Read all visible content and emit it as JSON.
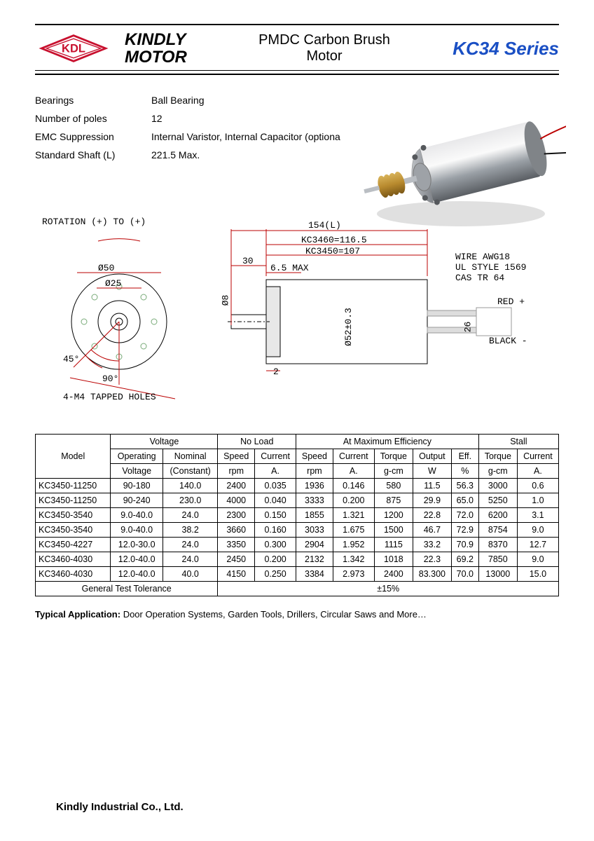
{
  "header": {
    "logo_text": "KDL",
    "brand_line1": "KINDLY",
    "brand_line2": "MOTOR",
    "product_line1": "PMDC Carbon Brush",
    "product_line2": "Motor",
    "series": "KC34 Series",
    "logo_red": "#c8102e"
  },
  "specs": [
    {
      "label": "Bearings",
      "value": "Ball Bearing"
    },
    {
      "label": "Number of poles",
      "value": "12"
    },
    {
      "label": "EMC Suppression",
      "value": "Internal Varistor, Internal Capacitor (optiona"
    },
    {
      "label": "Standard Shaft (L)",
      "value": "221.5 Max."
    }
  ],
  "diagram": {
    "rotation_label": "ROTATION (+) TO (+)",
    "dia50": "Ø50",
    "dia25": "Ø25",
    "ang45": "45°",
    "ang90": "90°",
    "holes": "4-M4 TAPPED HOLES",
    "len154": "154(L)",
    "kc3460": "KC3460=116.5",
    "kc3450": "KC3450=107",
    "d30": "30",
    "d65max": "6.5 MAX",
    "dia8": "Ø8",
    "dia52": "Ø52±0.3",
    "d2": "2",
    "wire1": "WIRE AWG18",
    "wire2": "UL STYLE 1569",
    "wire3": "CAS TR 64",
    "red": "RED +",
    "black": "BLACK -",
    "d26": "26"
  },
  "table": {
    "group_headers": [
      "Model",
      "Voltage",
      "No Load",
      "At Maximum Efficiency",
      "Stall"
    ],
    "sub_headers_row1": [
      "Operating",
      "Nominal",
      "Speed",
      "Current",
      "Speed",
      "Current",
      "Torque",
      "Output",
      "Eff.",
      "Torque",
      "Current"
    ],
    "sub_headers_row2": [
      "Voltage",
      "(Constant)",
      "rpm",
      "A.",
      "rpm",
      "A.",
      "g-cm",
      "W",
      "%",
      "g-cm",
      "A."
    ],
    "rows": [
      [
        "KC3450-11250",
        "90-180",
        "140.0",
        "2400",
        "0.035",
        "1936",
        "0.146",
        "580",
        "11.5",
        "56.3",
        "3000",
        "0.6"
      ],
      [
        "KC3450-11250",
        "90-240",
        "230.0",
        "4000",
        "0.040",
        "3333",
        "0.200",
        "875",
        "29.9",
        "65.0",
        "5250",
        "1.0"
      ],
      [
        "KC3450-3540",
        "9.0-40.0",
        "24.0",
        "2300",
        "0.150",
        "1855",
        "1.321",
        "1200",
        "22.8",
        "72.0",
        "6200",
        "3.1"
      ],
      [
        "KC3450-3540",
        "9.0-40.0",
        "38.2",
        "3660",
        "0.160",
        "3033",
        "1.675",
        "1500",
        "46.7",
        "72.9",
        "8754",
        "9.0"
      ],
      [
        "KC3450-4227",
        "12.0-30.0",
        "24.0",
        "3350",
        "0.300",
        "2904",
        "1.952",
        "1115",
        "33.2",
        "70.9",
        "8370",
        "12.7"
      ],
      [
        "KC3460-4030",
        "12.0-40.0",
        "24.0",
        "2450",
        "0.200",
        "2132",
        "1.342",
        "1018",
        "22.3",
        "69.2",
        "7850",
        "9.0"
      ],
      [
        "KC3460-4030",
        "12.0-40.0",
        "40.0",
        "4150",
        "0.250",
        "3384",
        "2.973",
        "2400",
        "83.300",
        "70.0",
        "13000",
        "15.0"
      ]
    ],
    "tolerance_label": "General Test Tolerance",
    "tolerance_value": "±15%"
  },
  "typical_app_label": "Typical Application:",
  "typical_app_text": " Door Operation Systems, Garden Tools, Drillers, Circular Saws and More…",
  "footer": "Kindly Industrial Co., Ltd."
}
